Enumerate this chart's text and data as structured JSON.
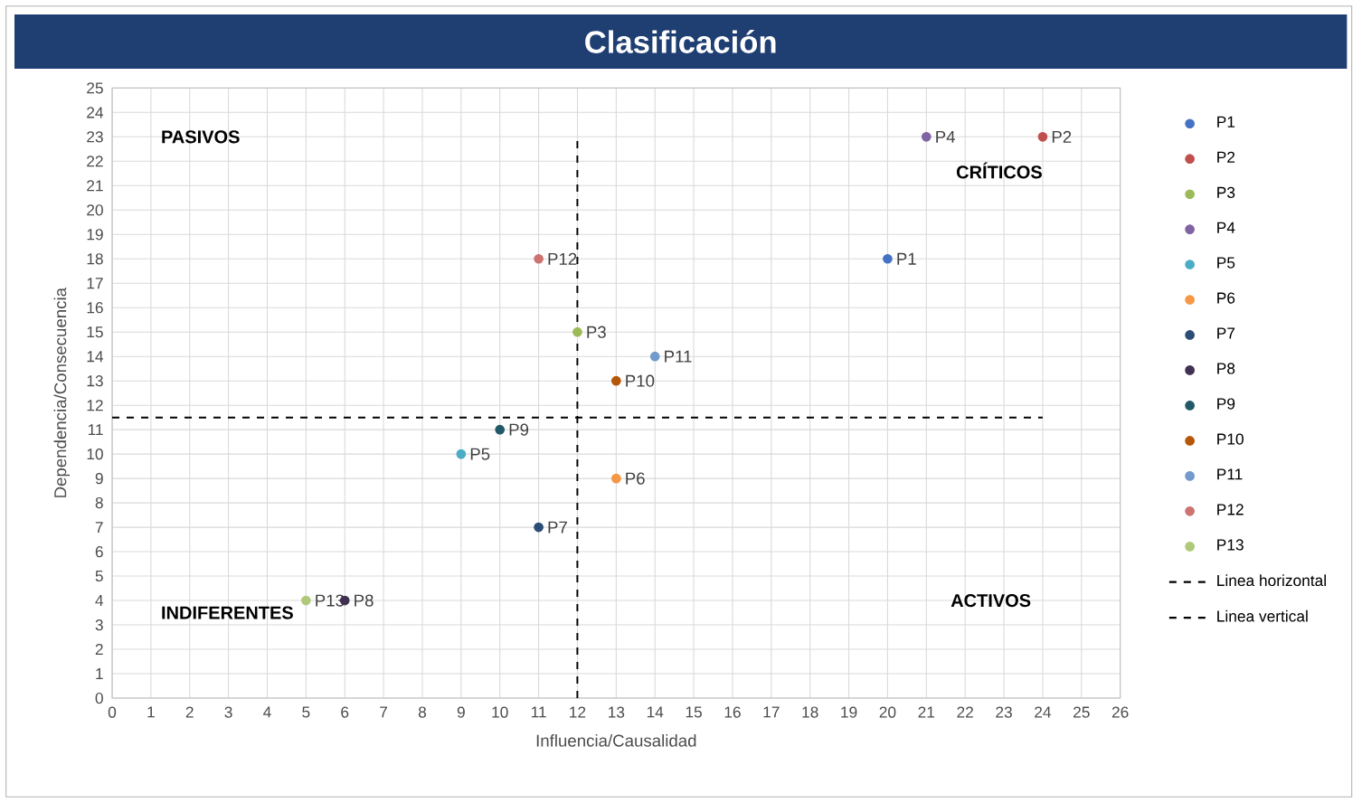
{
  "chart_data": {
    "type": "scatter",
    "title": "Clasificación",
    "xlabel": "Influencia/Causalidad",
    "ylabel": "Dependencia/Consecuencia",
    "annotations": [
      "PASIVOS",
      "CRÍTICOS",
      "INDIFERENTES",
      "ACTIVOS"
    ],
    "xlim": [
      0,
      26
    ],
    "ylim": [
      0,
      25
    ],
    "xticks": [
      0,
      1,
      2,
      3,
      4,
      5,
      6,
      7,
      8,
      9,
      10,
      11,
      12,
      13,
      14,
      15,
      16,
      17,
      18,
      19,
      20,
      21,
      22,
      23,
      24,
      25,
      26
    ],
    "yticks": [
      0,
      1,
      2,
      3,
      4,
      5,
      6,
      7,
      8,
      9,
      10,
      11,
      12,
      13,
      14,
      15,
      16,
      17,
      18,
      19,
      20,
      21,
      22,
      23,
      24,
      25
    ],
    "grid": true,
    "legend": "right",
    "marker": "circle",
    "series": [
      {
        "name": "P1",
        "color": "#4472c4",
        "x": [
          20
        ],
        "values": [
          18
        ]
      },
      {
        "name": "P2",
        "color": "#c0504d",
        "x": [
          24
        ],
        "values": [
          23
        ]
      },
      {
        "name": "P3",
        "color": "#9bbb59",
        "x": [
          12
        ],
        "values": [
          15
        ]
      },
      {
        "name": "P4",
        "color": "#8064a2",
        "x": [
          21
        ],
        "values": [
          23
        ]
      },
      {
        "name": "P5",
        "color": "#4bacc6",
        "x": [
          9
        ],
        "values": [
          10
        ]
      },
      {
        "name": "P6",
        "color": "#f79646",
        "x": [
          13
        ],
        "values": [
          9
        ]
      },
      {
        "name": "P7",
        "color": "#2c4d75",
        "x": [
          11
        ],
        "values": [
          7
        ]
      },
      {
        "name": "P8",
        "color": "#403152",
        "x": [
          6
        ],
        "values": [
          4
        ]
      },
      {
        "name": "P9",
        "color": "#215968",
        "x": [
          10
        ],
        "values": [
          11
        ]
      },
      {
        "name": "P10",
        "color": "#b65708",
        "x": [
          13
        ],
        "values": [
          13
        ]
      },
      {
        "name": "P11",
        "color": "#729aca",
        "x": [
          14
        ],
        "values": [
          14
        ]
      },
      {
        "name": "P12",
        "color": "#cd7371",
        "x": [
          11
        ],
        "values": [
          18
        ]
      },
      {
        "name": "P13",
        "color": "#afc97a",
        "x": [
          5
        ],
        "values": [
          4
        ]
      },
      {
        "name": "Linea horizontal",
        "type": "line",
        "line_style": "dashed",
        "marker": "none",
        "color": "#000000",
        "x": [
          0,
          24
        ],
        "values": [
          11.5,
          11.5
        ]
      },
      {
        "name": "Linea vertical",
        "type": "line",
        "line_style": "dashed",
        "marker": "none",
        "color": "#000000",
        "x": [
          12,
          12
        ],
        "values": [
          0,
          23
        ]
      }
    ]
  }
}
